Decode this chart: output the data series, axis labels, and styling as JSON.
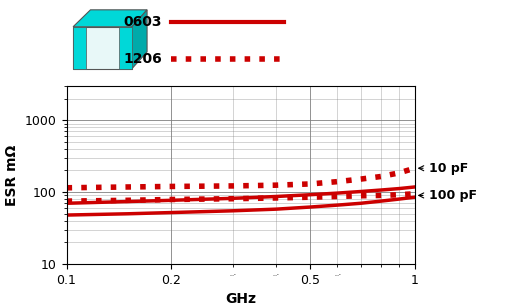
{
  "freq": [
    0.1,
    0.15,
    0.2,
    0.3,
    0.4,
    0.5,
    0.6,
    0.7,
    0.8,
    0.9,
    1.0
  ],
  "esr_0603_10pF": [
    70,
    74,
    77,
    82,
    87,
    92,
    97,
    102,
    107,
    112,
    118
  ],
  "esr_0603_100pF": [
    48,
    50,
    52,
    55,
    58,
    62,
    66,
    70,
    75,
    80,
    85
  ],
  "esr_1206_10pF": [
    115,
    118,
    120,
    122,
    125,
    130,
    140,
    152,
    165,
    185,
    215
  ],
  "esr_1206_100pF": [
    75,
    77,
    79,
    81,
    83,
    85,
    87,
    89,
    90,
    92,
    95
  ],
  "line_color": "#cc0000",
  "xlabel": "GHz",
  "ylabel": "ESR mΩ",
  "xlim": [
    0.1,
    1.0
  ],
  "ylim": [
    10,
    3000
  ],
  "legend_0603": "0603",
  "legend_1206": "1206",
  "label_10pF": "10 pF",
  "label_100pF": "100 pF",
  "cap_color_front": "#e8f8f8",
  "cap_color_cyan": "#00d8d8",
  "cap_color_dark_cyan": "#00aaaa",
  "cap_color_edge": "#555555"
}
